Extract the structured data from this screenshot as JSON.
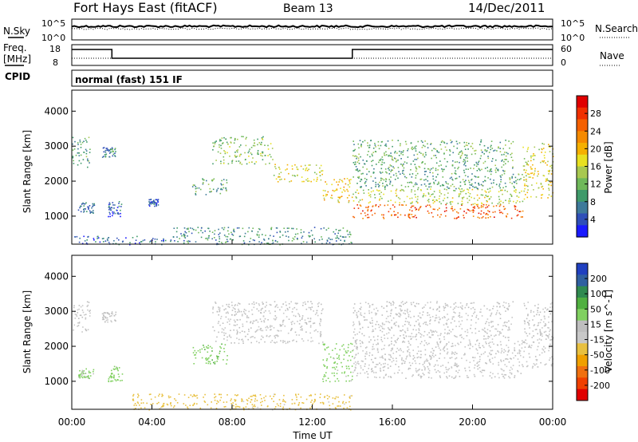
{
  "header": {
    "station": "Fort Hays East (fitACF)",
    "beam": "Beam 13",
    "date": "14/Dec/2011"
  },
  "top_panels": {
    "nsky_label": "N.Sky",
    "nsearch_label": "N.Search",
    "freq_label_1": "Freq.",
    "freq_label_2": "[MHz]",
    "nave_label": "Nave",
    "cpid_label": "CPID",
    "cpid_text": "normal (fast) 151 IF",
    "noise_ticks_left": [
      "10^5",
      "10^0"
    ],
    "noise_ticks_right": [
      "10^5",
      "10^0"
    ],
    "freq_ticks": [
      "18",
      "8"
    ],
    "nave_ticks": [
      "60",
      "0"
    ]
  },
  "colors": {
    "power_scale": [
      "#1a1aff",
      "#2f4fb8",
      "#3e7a9a",
      "#3f9a6a",
      "#6fb85a",
      "#a8c850",
      "#e8e020",
      "#f5b000",
      "#f58a00",
      "#f56000",
      "#f03000",
      "#e00000"
    ],
    "velocity_scale": [
      "#2040c0",
      "#3060a0",
      "#308a50",
      "#50b040",
      "#80d060",
      "#bebebe",
      "#c8c8c8",
      "#e8c040",
      "#f0a000",
      "#f07010",
      "#f04000",
      "#e00000"
    ]
  },
  "chart_data": [
    {
      "type": "heatmap",
      "name": "power-panel",
      "ylabel": "Slant Range [km]",
      "yticks": [
        "1000",
        "2000",
        "3000",
        "4000"
      ],
      "ylim": [
        200,
        4600
      ],
      "colorbar_label": "Power [dB]",
      "colorbar_ticks": [
        "4",
        "8",
        "12",
        "16",
        "20",
        "24",
        "28"
      ],
      "colorbar_range": [
        0,
        30
      ],
      "regions": [
        {
          "t0": 0.0,
          "t1": 0.9,
          "r0": 2400,
          "r1": 3300,
          "level": 9
        },
        {
          "t0": 0.3,
          "t1": 1.1,
          "r0": 1100,
          "r1": 1400,
          "level": 5
        },
        {
          "t0": 1.5,
          "t1": 2.2,
          "r0": 2700,
          "r1": 3000,
          "level": 7
        },
        {
          "t0": 1.8,
          "t1": 2.5,
          "r0": 1000,
          "r1": 1450,
          "level": 5
        },
        {
          "t0": 3.8,
          "t1": 4.3,
          "r0": 1300,
          "r1": 1500,
          "level": 4
        },
        {
          "t0": 6.0,
          "t1": 7.8,
          "r0": 1600,
          "r1": 2100,
          "level": 10
        },
        {
          "t0": 7.0,
          "t1": 10.0,
          "r0": 2500,
          "r1": 3300,
          "level": 12
        },
        {
          "t0": 10.0,
          "t1": 12.5,
          "r0": 2000,
          "r1": 2500,
          "level": 16
        },
        {
          "t0": 12.5,
          "t1": 14.0,
          "r0": 1400,
          "r1": 2100,
          "level": 18
        },
        {
          "t0": 14.0,
          "t1": 22.5,
          "r0": 950,
          "r1": 1350,
          "level": 24
        },
        {
          "t0": 14.0,
          "t1": 22.5,
          "r0": 1350,
          "r1": 1800,
          "level": 14
        },
        {
          "t0": 14.0,
          "t1": 22.5,
          "r0": 1800,
          "r1": 2300,
          "level": 9
        },
        {
          "t0": 14.0,
          "t1": 22.0,
          "r0": 2300,
          "r1": 3200,
          "level": 10
        },
        {
          "t0": 22.5,
          "t1": 24.0,
          "r0": 1500,
          "r1": 3100,
          "level": 16
        },
        {
          "t0": 5.0,
          "t1": 14.0,
          "r0": 200,
          "r1": 700,
          "level": 8
        },
        {
          "t0": 0.0,
          "t1": 5.0,
          "r0": 200,
          "r1": 450,
          "level": 5
        }
      ]
    },
    {
      "type": "heatmap",
      "name": "velocity-panel",
      "ylabel": "Slant Range [km]",
      "yticks": [
        "1000",
        "2000",
        "3000",
        "4000"
      ],
      "ylim": [
        200,
        4600
      ],
      "xlabel": "Time UT",
      "xticks": [
        "00:00",
        "04:00",
        "08:00",
        "12:00",
        "16:00",
        "20:00",
        "00:00"
      ],
      "xlim": [
        0,
        24
      ],
      "colorbar_label": "Velocity [m s^-1]",
      "colorbar_ticks": [
        "200",
        "100",
        "50",
        "15",
        "-15",
        "-50",
        "-100",
        "-200"
      ],
      "colorbar_range": [
        -250,
        250
      ],
      "regions": [
        {
          "t0": 0.0,
          "t1": 0.9,
          "r0": 2400,
          "r1": 3300,
          "level": 0
        },
        {
          "t0": 0.3,
          "t1": 1.1,
          "r0": 1100,
          "r1": 1400,
          "level": 50
        },
        {
          "t0": 1.5,
          "t1": 2.2,
          "r0": 2700,
          "r1": 3000,
          "level": 0
        },
        {
          "t0": 1.8,
          "t1": 2.5,
          "r0": 1000,
          "r1": 1450,
          "level": 60
        },
        {
          "t0": 6.0,
          "t1": 7.8,
          "r0": 1500,
          "r1": 2100,
          "level": 70
        },
        {
          "t0": 7.0,
          "t1": 12.5,
          "r0": 2100,
          "r1": 3300,
          "level": 0
        },
        {
          "t0": 12.5,
          "t1": 14.0,
          "r0": 1000,
          "r1": 2100,
          "level": 60
        },
        {
          "t0": 14.0,
          "t1": 22.5,
          "r0": 1100,
          "r1": 2300,
          "level": 0
        },
        {
          "t0": 14.0,
          "t1": 22.0,
          "r0": 2300,
          "r1": 3300,
          "level": 0
        },
        {
          "t0": 22.5,
          "t1": 24.0,
          "r0": 1400,
          "r1": 3300,
          "level": 0
        },
        {
          "t0": 3.0,
          "t1": 14.0,
          "r0": 200,
          "r1": 650,
          "level": -60
        }
      ]
    }
  ]
}
